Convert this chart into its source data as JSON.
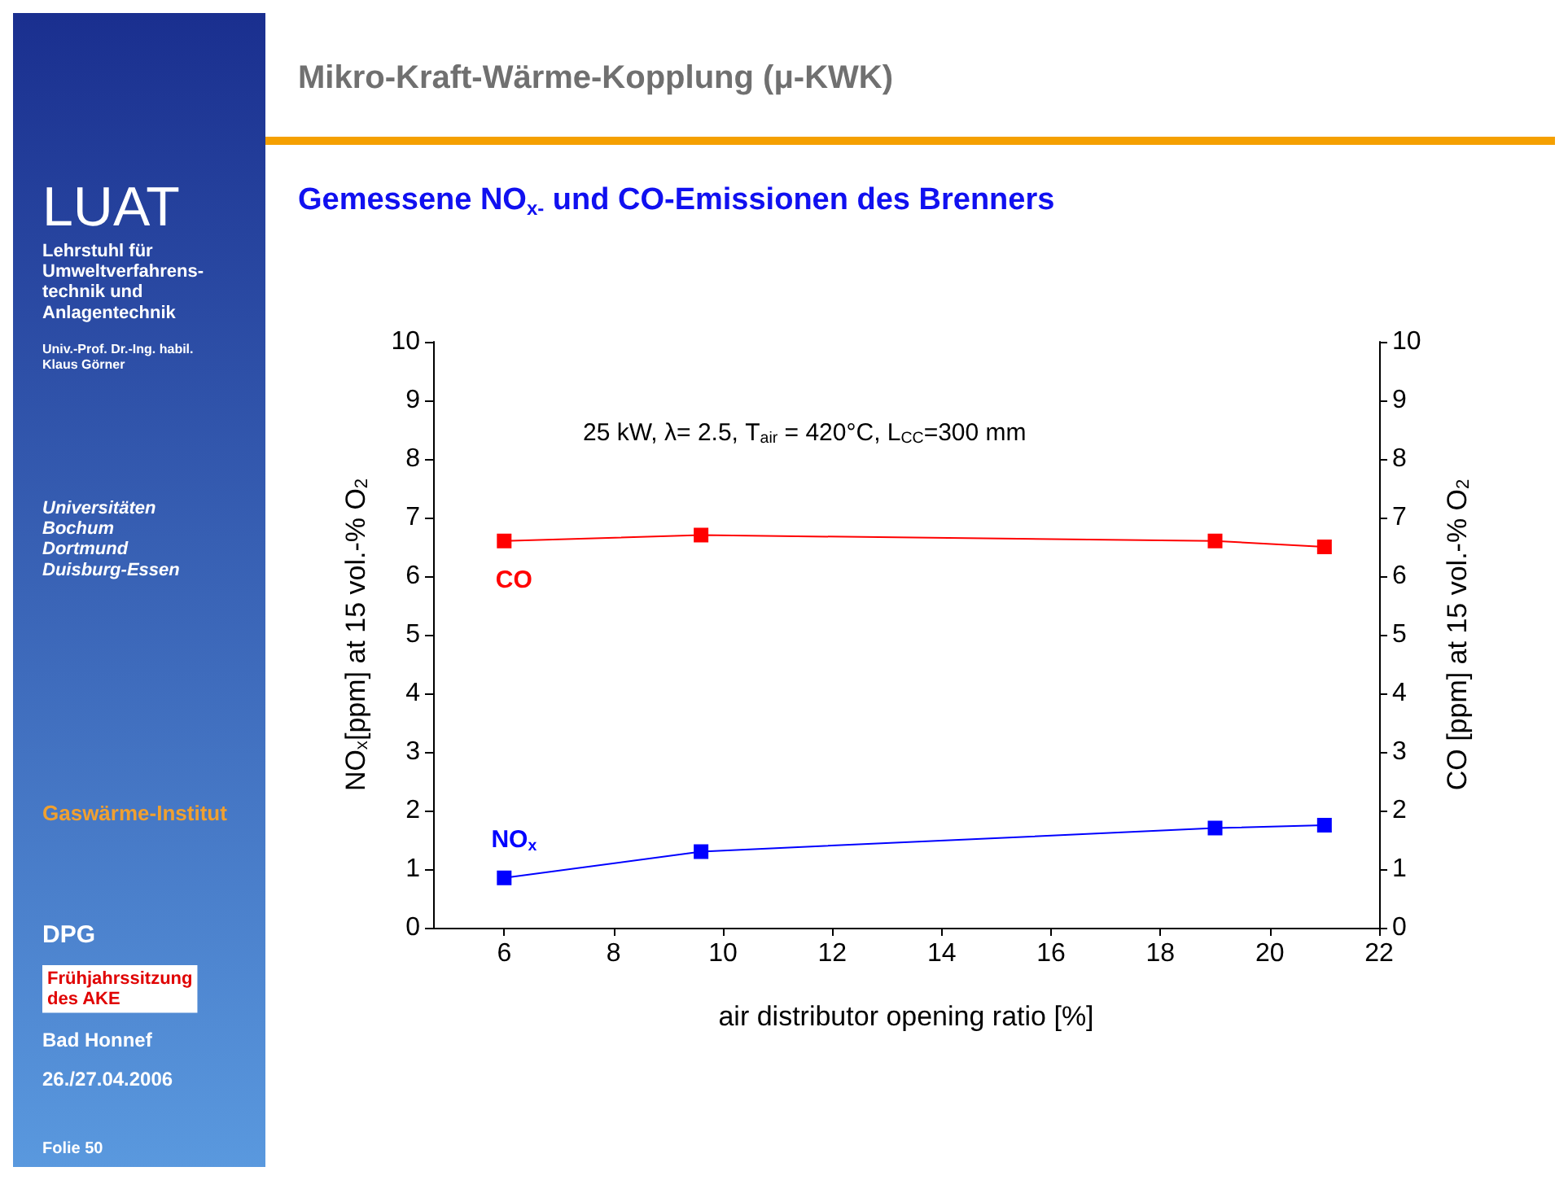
{
  "chart_data": {
    "type": "line",
    "title": "Mikro-Kraft-Wärme-Kopplung (μ-KWK)",
    "subtitle": "Gemessene NO$_{x-}$ und CO-Emissionen des Brenners",
    "xlabel": "air distributor opening ratio [%]",
    "ylabel": "NO$_{x}$[ppm] at 15 vol.-% O$_{2}$",
    "y2label": "CO [ppm] at 15 vol.-% O$_{2}$",
    "x": [
      6,
      9.6,
      19,
      21
    ],
    "series": [
      {
        "name": "CO",
        "color": "#ff0000",
        "values": [
          6.6,
          6.7,
          6.6,
          6.5
        ]
      },
      {
        "name": "NO$_{x}$",
        "color": "#0000ff",
        "values": [
          0.85,
          1.3,
          1.7,
          1.75
        ]
      }
    ],
    "xlim": [
      4.7,
      22
    ],
    "xticks": [
      6,
      8,
      10,
      12,
      14,
      16,
      18,
      20,
      22
    ],
    "ylim": [
      0,
      10
    ],
    "yticks": [
      0,
      1,
      2,
      3,
      4,
      5,
      6,
      7,
      8,
      9,
      10
    ],
    "y2lim": [
      0,
      10
    ],
    "y2ticks": [
      0,
      1,
      2,
      3,
      4,
      5,
      6,
      7,
      8,
      9,
      10
    ],
    "marker": "square",
    "line_style": "solid",
    "grid": false,
    "legend": false,
    "annotations": [
      "25 kW, λ= 2.5, T$_{air}$ = 420°C, L$_{CC}$=300 mm",
      "LUAT",
      "Lehrstuhl für\nUmweltverfahrens-\ntechnik und\nAnlagentechnik",
      "Univ.-Prof. Dr.-Ing. habil.\nKlaus Görner",
      "Universitäten\nBochum\nDortmund\nDuisburg-Essen",
      "Gaswärme-Institut",
      "DPG",
      "Frühjahrssitzung\ndes AKE",
      "Bad Honnef",
      "26./27.04.2006",
      "Folie 50"
    ]
  }
}
